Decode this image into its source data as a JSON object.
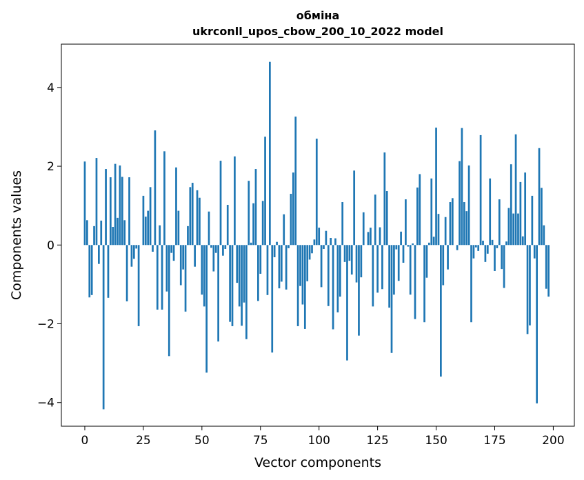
{
  "chart_data": {
    "type": "bar",
    "title_line1": "обміна",
    "title_line2": "ukrconll_upos_cbow_200_10_2022 model",
    "xlabel": "Vector components",
    "ylabel": "Components values",
    "xlim": [
      -10,
      209
    ],
    "ylim": [
      -4.6,
      5.1
    ],
    "xticks": [
      0,
      25,
      50,
      75,
      100,
      125,
      150,
      175,
      200
    ],
    "yticks": [
      -4,
      -2,
      0,
      2,
      4
    ],
    "xtick_labels": [
      "0",
      "25",
      "50",
      "75",
      "100",
      "125",
      "150",
      "175",
      "200"
    ],
    "ytick_labels": [
      "−4",
      "−2",
      "0",
      "2",
      "4"
    ],
    "bar_color": "#1f77b4",
    "grid": false,
    "values": [
      2.12,
      0.63,
      -1.33,
      -1.27,
      0.48,
      2.21,
      -0.48,
      0.62,
      -4.17,
      1.93,
      -1.34,
      1.72,
      0.46,
      2.06,
      0.69,
      2.02,
      1.73,
      0.63,
      -1.43,
      1.72,
      -0.55,
      -0.35,
      -0.09,
      -2.06,
      0.0,
      1.25,
      0.72,
      0.87,
      1.47,
      -0.17,
      2.91,
      -1.64,
      0.5,
      -1.64,
      2.38,
      -1.18,
      -2.82,
      -0.2,
      -0.4,
      1.97,
      0.87,
      -1.02,
      -0.62,
      -1.69,
      0.48,
      1.47,
      1.58,
      -0.55,
      1.39,
      1.2,
      -1.26,
      -1.56,
      -3.24,
      0.85,
      -0.07,
      -0.67,
      -0.2,
      -2.45,
      2.14,
      -0.27,
      -0.1,
      1.02,
      -1.95,
      -2.06,
      2.25,
      -0.96,
      -1.56,
      -2.05,
      -1.46,
      -2.39,
      1.63,
      0.06,
      1.06,
      1.93,
      -1.42,
      -0.73,
      1.12,
      2.75,
      -1.27,
      4.65,
      -2.73,
      -0.31,
      0.08,
      -1.1,
      -0.93,
      0.78,
      -1.13,
      -0.08,
      1.3,
      1.84,
      3.26,
      -2.06,
      -1.04,
      -1.51,
      -2.13,
      -0.92,
      -0.37,
      -0.21,
      0.14,
      2.7,
      0.44,
      -1.07,
      -0.1,
      0.36,
      -1.55,
      0.18,
      -2.14,
      0.17,
      -1.71,
      -1.31,
      1.09,
      -0.43,
      -2.93,
      -0.4,
      -0.75,
      1.89,
      -0.95,
      -2.3,
      -0.82,
      0.83,
      0.0,
      0.33,
      0.44,
      -1.56,
      1.28,
      -1.21,
      0.45,
      -1.12,
      2.35,
      1.37,
      -1.59,
      -2.74,
      -1.26,
      -0.11,
      -0.91,
      0.34,
      -0.45,
      1.16,
      -0.04,
      -1.26,
      0.04,
      -1.88,
      1.46,
      1.8,
      0.0,
      -1.96,
      -0.83,
      0.06,
      1.69,
      0.21,
      2.98,
      0.79,
      -3.34,
      -1.02,
      0.71,
      -0.62,
      1.09,
      1.19,
      0.0,
      -0.13,
      2.13,
      2.97,
      1.09,
      0.86,
      2.02,
      -1.96,
      -0.34,
      -0.06,
      -0.15,
      2.79,
      0.11,
      -0.43,
      -0.22,
      1.69,
      0.13,
      -0.66,
      -0.08,
      1.16,
      -0.61,
      -1.09,
      0.09,
      0.94,
      2.05,
      0.8,
      2.81,
      0.8,
      1.6,
      0.22,
      1.84,
      -2.26,
      -2.04,
      1.25,
      -0.34,
      -4.02,
      2.46,
      1.45,
      0.5,
      -1.11,
      -1.31
    ]
  }
}
